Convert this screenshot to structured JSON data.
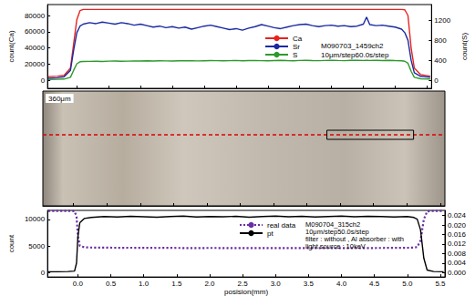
{
  "chart_data": [
    {
      "type": "line",
      "ylabel": "count(Ca)",
      "y2label": "count(S)",
      "annotations": [
        "M090703_1459ch2",
        "10μm/step60.0s/step"
      ],
      "xlim": [
        -0.46,
        5.57
      ],
      "xticks": [
        {
          "value": 0,
          "label": "0.0"
        },
        0.5,
        {
          "value": 1,
          "label": "1.0"
        },
        1.5,
        {
          "value": 2,
          "label": "2.0"
        },
        2.5,
        {
          "value": 3,
          "label": "3.0"
        },
        3.5,
        {
          "value": 4,
          "label": "4.0"
        },
        4.5,
        {
          "value": 5,
          "label": "5.0"
        },
        5.5
      ],
      "ylim": [
        -10000,
        93500
      ],
      "yticks": [
        0,
        20000,
        40000,
        60000,
        80000
      ],
      "y2lim": [
        -160,
        1510
      ],
      "y2ticks": [
        0,
        400,
        800,
        1200
      ],
      "tick_labels": "y",
      "grid": false,
      "x": [
        -0.45,
        -0.3,
        -0.2,
        -0.1,
        -0.05,
        0,
        0.05,
        0.1,
        0.2,
        0.3,
        0.4,
        0.5,
        0.6,
        0.7,
        0.8,
        0.9,
        1.0,
        1.1,
        1.2,
        1.3,
        1.4,
        1.5,
        1.6,
        1.7,
        1.8,
        1.9,
        2.0,
        2.1,
        2.2,
        2.3,
        2.4,
        2.5,
        2.6,
        2.7,
        2.8,
        2.9,
        3.0,
        3.1,
        3.2,
        3.3,
        3.4,
        3.5,
        3.6,
        3.7,
        3.8,
        3.9,
        4.0,
        4.1,
        4.2,
        4.3,
        4.4,
        4.5,
        4.55,
        4.6,
        4.7,
        4.8,
        4.9,
        5.0,
        5.1,
        5.15,
        5.2,
        5.25,
        5.3,
        5.4,
        5.55
      ],
      "series": [
        {
          "name": "Ca",
          "color": "#e8231f",
          "line_style": "solid",
          "values": [
            4500,
            5000,
            6000,
            15000,
            45000,
            75000,
            86000,
            87500,
            87500,
            87500,
            87500,
            87500,
            87500,
            87500,
            87500,
            87500,
            87500,
            87500,
            87500,
            87500,
            87500,
            87500,
            87500,
            87500,
            87500,
            87500,
            87500,
            87500,
            87500,
            87500,
            87500,
            87500,
            87500,
            87500,
            87500,
            87500,
            87500,
            87500,
            87500,
            87500,
            87500,
            87500,
            87500,
            87500,
            87500,
            87500,
            87500,
            87500,
            87500,
            87500,
            87500,
            87500,
            87500,
            87500,
            87500,
            87500,
            87500,
            87500,
            87500,
            87000,
            80000,
            40000,
            15000,
            7000,
            5000
          ]
        },
        {
          "name": "Sr",
          "color": "#1a2aa0",
          "line_style": "solid",
          "axis": "y2",
          "values": [
            40,
            50,
            70,
            200,
            600,
            950,
            1080,
            1120,
            1150,
            1130,
            1160,
            1140,
            1120,
            1150,
            1130,
            1100,
            1120,
            1090,
            1060,
            1080,
            1050,
            1070,
            1040,
            1060,
            1020,
            1050,
            1080,
            1100,
            1070,
            1040,
            1010,
            1030,
            1000,
            1040,
            1070,
            1110,
            1080,
            1050,
            1030,
            1060,
            1090,
            1110,
            1120,
            1090,
            1070,
            1090,
            1100,
            1080,
            1090,
            1070,
            1080,
            1120,
            1260,
            1110,
            1090,
            1100,
            1080,
            1060,
            1020,
            950,
            800,
            400,
            150,
            80,
            60
          ]
        },
        {
          "name": "S",
          "color": "#2e9a2e",
          "line_style": "solid",
          "axis": "y2",
          "values": [
            15,
            20,
            25,
            60,
            200,
            330,
            370,
            375,
            378,
            380,
            376,
            382,
            385,
            380,
            383,
            386,
            384,
            388,
            385,
            390,
            387,
            384,
            388,
            392,
            389,
            386,
            390,
            393,
            391,
            388,
            392,
            395,
            390,
            393,
            396,
            392,
            389,
            394,
            397,
            393,
            390,
            395,
            398,
            394,
            391,
            396,
            399,
            395,
            392,
            397,
            400,
            396,
            398,
            395,
            398,
            394,
            397,
            393,
            390,
            380,
            340,
            180,
            60,
            30,
            25
          ]
        }
      ]
    },
    {
      "type": "line",
      "xlabel": "posision(mm)",
      "ylabel": "count",
      "annotations": [
        "M090704_315ch2",
        "10μm/step50.0s/step",
        "filter : without , Al absorber : with",
        "light source : 10keV"
      ],
      "xlim": [
        -0.46,
        5.57
      ],
      "xticks": [
        {
          "value": 0,
          "label": "0.0"
        },
        0.5,
        {
          "value": 1,
          "label": "1.0"
        },
        1.5,
        {
          "value": 2,
          "label": "2.0"
        },
        2.5,
        {
          "value": 3,
          "label": "3.0"
        },
        3.5,
        {
          "value": 4,
          "label": "4.0"
        },
        4.5,
        {
          "value": 5,
          "label": "5.0"
        },
        5.5
      ],
      "ylim": [
        -850,
        11700
      ],
      "yticks": [
        0,
        5000,
        10000
      ],
      "y2lim": [
        -0.0019,
        0.0262
      ],
      "y2ticks": [
        {
          "value": 0,
          "label": "0.000"
        },
        {
          "value": 0.004,
          "label": "0.004"
        },
        {
          "value": 0.008,
          "label": "0.008"
        },
        {
          "value": 0.012,
          "label": "0.012"
        },
        {
          "value": 0.016,
          "label": "0.016"
        },
        {
          "value": 0.02,
          "label": "0.020"
        },
        {
          "value": 0.024,
          "label": "0.024"
        }
      ],
      "grid": false,
      "x": [
        -0.45,
        -0.3,
        -0.15,
        -0.05,
        -0.02,
        0,
        0.03,
        0.1,
        0.2,
        0.4,
        0.6,
        0.8,
        1,
        1.2,
        1.4,
        1.6,
        1.8,
        2,
        2.2,
        2.4,
        2.6,
        2.8,
        3,
        3.2,
        3.4,
        3.6,
        3.8,
        4,
        4.2,
        4.4,
        4.6,
        4.8,
        5,
        5.1,
        5.15,
        5.2,
        5.25,
        5.3,
        5.4,
        5.55
      ],
      "series": [
        {
          "name": "real data",
          "color": "#6b2fa3",
          "line_style": "dotted",
          "values": [
            11600,
            11600,
            11600,
            11550,
            10500,
            7000,
            5000,
            4750,
            4700,
            4680,
            4650,
            4660,
            4640,
            4620,
            4630,
            4610,
            4600,
            4620,
            4610,
            4600,
            4590,
            4600,
            4610,
            4590,
            4600,
            4580,
            4600,
            4590,
            4610,
            4600,
            4620,
            4630,
            4650,
            4700,
            4800,
            6000,
            10000,
            11500,
            11600,
            11600
          ]
        },
        {
          "name": "pt",
          "color": "#000000",
          "line_style": "solid",
          "axis": "y2",
          "values": [
            0.0003,
            0.0003,
            0.0004,
            0.0006,
            0.004,
            0.015,
            0.021,
            0.0228,
            0.0232,
            0.0236,
            0.0234,
            0.0237,
            0.0235,
            0.0233,
            0.0236,
            0.0238,
            0.0234,
            0.0236,
            0.0235,
            0.0237,
            0.0233,
            0.0236,
            0.0238,
            0.0235,
            0.0237,
            0.0234,
            0.0236,
            0.0238,
            0.0235,
            0.0237,
            0.0236,
            0.0234,
            0.0236,
            0.0232,
            0.0225,
            0.018,
            0.006,
            0.001,
            0.0004,
            0.0003
          ]
        }
      ]
    }
  ],
  "image": {
    "scale_label": "360μm",
    "box_x": [
      3.8,
      5.1
    ]
  }
}
